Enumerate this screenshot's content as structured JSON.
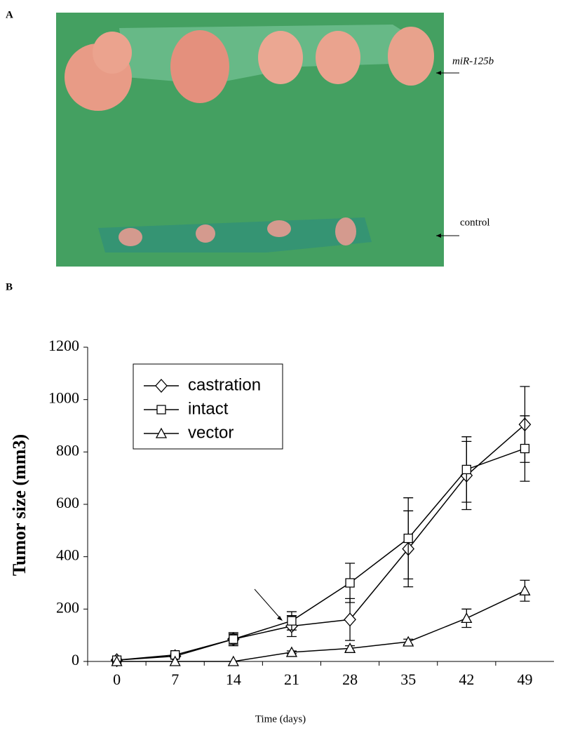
{
  "panel_a": {
    "label": "A",
    "annotations": [
      "miR-125b",
      "control"
    ]
  },
  "panel_b": {
    "label": "B"
  },
  "chart_data": {
    "type": "line",
    "x_label": "Time (days)",
    "y_label": "Tumor size (mm3)",
    "categories": [
      "0",
      "7",
      "14",
      "21",
      "28",
      "35",
      "42",
      "49"
    ],
    "ylim": [
      0,
      1200
    ],
    "yticks": [
      0,
      200,
      400,
      600,
      800,
      1000,
      1200
    ],
    "grid": false,
    "legend": "upper left",
    "series": [
      {
        "name": "castration",
        "color": "#000000",
        "marker": "diamond",
        "values": [
          5,
          20,
          85,
          135,
          160,
          430,
          710,
          905
        ],
        "errors": [
          2,
          5,
          20,
          40,
          80,
          145,
          130,
          145
        ]
      },
      {
        "name": "intact",
        "color": "#000000",
        "marker": "square",
        "values": [
          5,
          25,
          85,
          155,
          300,
          470,
          733,
          813
        ],
        "errors": [
          2,
          5,
          25,
          35,
          75,
          155,
          125,
          125
        ]
      },
      {
        "name": "vector",
        "color": "#000000",
        "marker": "triangle",
        "values": [
          0,
          0,
          0,
          35,
          50,
          75,
          165,
          270
        ],
        "errors": [
          0,
          0,
          0,
          5,
          10,
          10,
          35,
          40
        ]
      }
    ]
  }
}
